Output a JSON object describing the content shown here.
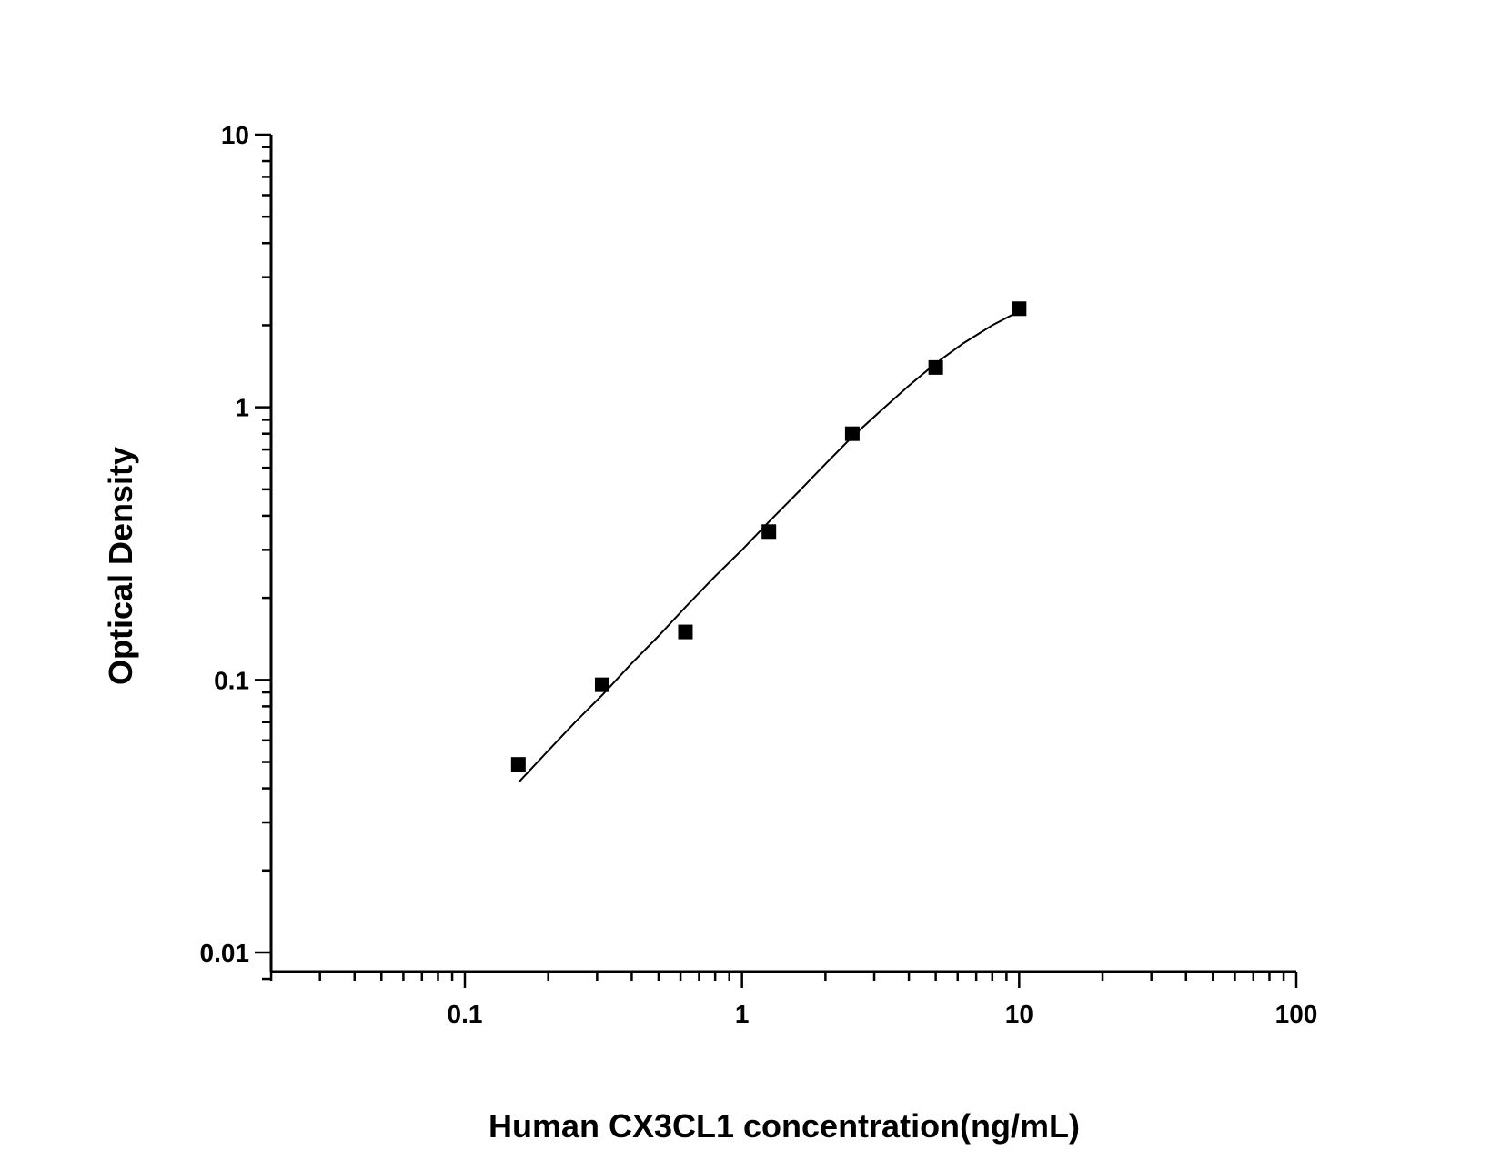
{
  "chart_data": {
    "type": "scatter",
    "title": "",
    "xlabel": "Human CX3CL1 concentration(ng/mL)",
    "ylabel": "Optical Density",
    "xscale": "log",
    "yscale": "log",
    "xlim": [
      0.02,
      100
    ],
    "ylim": [
      0.008,
      10
    ],
    "x_ticks": [
      "0.1",
      "1",
      "10",
      "100"
    ],
    "y_ticks": [
      "0.01",
      "0.1",
      "1",
      "10"
    ],
    "grid": false,
    "legend": "none",
    "series": [
      {
        "marker": "square",
        "x": [
          0.156,
          0.313,
          0.625,
          1.25,
          2.5,
          5,
          10
        ],
        "y": [
          0.049,
          0.096,
          0.15,
          0.35,
          0.8,
          1.4,
          2.3
        ]
      }
    ],
    "fit_curve": {
      "x": [
        0.156,
        0.2,
        0.25,
        0.313,
        0.4,
        0.5,
        0.625,
        0.8,
        1.0,
        1.25,
        1.6,
        2.0,
        2.5,
        3.2,
        4.0,
        5.0,
        6.3,
        8.0,
        10.0
      ],
      "y": [
        0.042,
        0.055,
        0.07,
        0.088,
        0.115,
        0.145,
        0.185,
        0.24,
        0.3,
        0.38,
        0.49,
        0.62,
        0.78,
        0.98,
        1.2,
        1.45,
        1.72,
        2.0,
        2.25
      ]
    }
  }
}
